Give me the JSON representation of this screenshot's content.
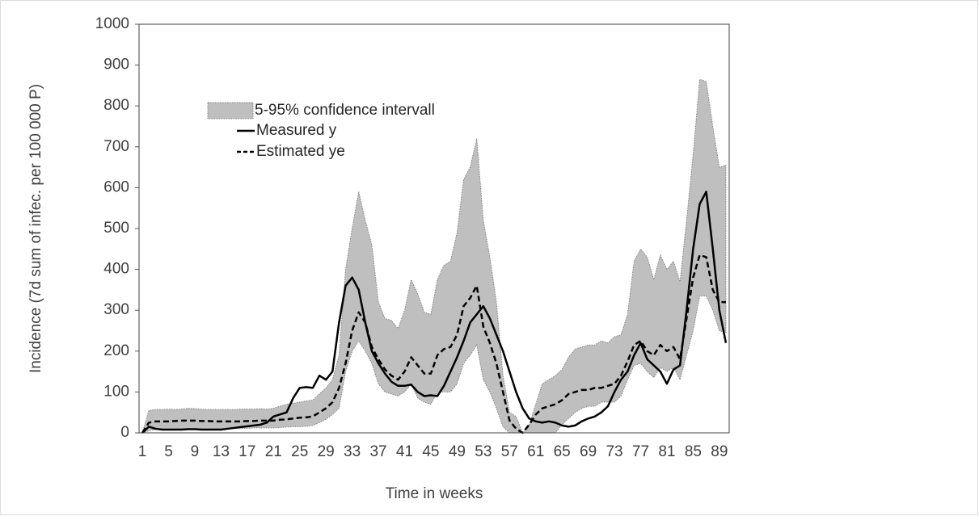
{
  "chart_data": {
    "type": "line",
    "y_label": "Incidence (7d sum of infec. per 100 000 P)",
    "x_label": "Time in weeks",
    "categories": [
      "1",
      null,
      null,
      null,
      "5",
      null,
      null,
      null,
      "9",
      null,
      null,
      null,
      "13",
      null,
      null,
      null,
      "17",
      null,
      null,
      null,
      "21",
      null,
      null,
      null,
      "25",
      null,
      null,
      null,
      "29",
      null,
      null,
      null,
      "33",
      null,
      null,
      null,
      "37",
      null,
      null,
      null,
      "41",
      null,
      null,
      null,
      "45",
      null,
      null,
      null,
      "49",
      null,
      null,
      null,
      "53",
      null,
      null,
      null,
      "57",
      null,
      null,
      null,
      "61",
      null,
      null,
      null,
      "65",
      null,
      null,
      null,
      "69",
      null,
      null,
      null,
      "73",
      null,
      null,
      null,
      "77",
      null,
      null,
      null,
      "81",
      null,
      null,
      null,
      "85",
      null,
      null,
      null,
      "89",
      null
    ],
    "ylim": [
      0,
      1000
    ],
    "yticks": [
      0,
      100,
      200,
      300,
      400,
      500,
      600,
      700,
      800,
      900,
      1000
    ],
    "band": {
      "name": "5-95% confidence intervall",
      "color": "#bfbfbf",
      "upper": [
        0,
        55,
        57,
        57,
        58,
        57,
        58,
        60,
        59,
        58,
        57,
        57,
        57,
        57,
        57,
        58,
        58,
        58,
        59,
        58,
        60,
        65,
        70,
        72,
        75,
        78,
        80,
        95,
        110,
        130,
        190,
        400,
        500,
        590,
        520,
        460,
        320,
        280,
        275,
        255,
        300,
        375,
        340,
        295,
        290,
        375,
        410,
        420,
        490,
        620,
        650,
        720,
        520,
        430,
        320,
        140,
        50,
        40,
        0,
        20,
        70,
        120,
        130,
        140,
        155,
        185,
        205,
        210,
        215,
        215,
        225,
        220,
        235,
        240,
        290,
        420,
        450,
        430,
        375,
        435,
        400,
        420,
        370,
        520,
        680,
        865,
        860,
        750,
        650,
        655
      ],
      "lower": [
        0,
        5,
        8,
        9,
        9,
        9,
        10,
        10,
        10,
        10,
        10,
        10,
        10,
        10,
        11,
        11,
        11,
        12,
        12,
        12,
        12,
        13,
        14,
        15,
        15,
        16,
        18,
        25,
        33,
        45,
        60,
        150,
        200,
        225,
        200,
        170,
        120,
        100,
        95,
        90,
        100,
        120,
        85,
        75,
        70,
        100,
        100,
        100,
        120,
        170,
        190,
        215,
        130,
        100,
        60,
        15,
        0,
        0,
        0,
        0,
        0,
        0,
        0,
        0,
        20,
        35,
        50,
        60,
        65,
        65,
        75,
        75,
        75,
        90,
        130,
        165,
        170,
        150,
        135,
        160,
        150,
        160,
        130,
        190,
        250,
        335,
        335,
        300,
        250,
        245
      ]
    },
    "series": [
      {
        "name": "Measured y",
        "color": "#000000",
        "dashed": false,
        "values": [
          0,
          15,
          10,
          8,
          8,
          8,
          8,
          9,
          9,
          8,
          8,
          8,
          8,
          10,
          12,
          14,
          16,
          18,
          20,
          25,
          40,
          45,
          50,
          85,
          110,
          112,
          110,
          140,
          130,
          150,
          270,
          360,
          380,
          350,
          270,
          200,
          170,
          145,
          125,
          115,
          115,
          118,
          100,
          90,
          92,
          90,
          115,
          150,
          185,
          225,
          270,
          290,
          310,
          280,
          240,
          200,
          150,
          100,
          60,
          35,
          28,
          25,
          28,
          25,
          18,
          15,
          18,
          28,
          35,
          40,
          50,
          65,
          100,
          130,
          150,
          190,
          220,
          180,
          165,
          150,
          120,
          155,
          165,
          300,
          450,
          560,
          590,
          450,
          300,
          220
        ]
      },
      {
        "name": "Estimated ye",
        "color": "#000000",
        "dashed": true,
        "values": [
          0,
          25,
          28,
          28,
          28,
          29,
          30,
          30,
          30,
          29,
          29,
          28,
          28,
          28,
          28,
          28,
          29,
          29,
          30,
          30,
          30,
          32,
          33,
          35,
          37,
          38,
          40,
          50,
          60,
          75,
          110,
          170,
          250,
          295,
          270,
          210,
          180,
          155,
          140,
          130,
          150,
          185,
          165,
          145,
          145,
          190,
          205,
          210,
          240,
          310,
          330,
          360,
          260,
          220,
          170,
          100,
          30,
          10,
          0,
          20,
          45,
          60,
          65,
          70,
          80,
          95,
          100,
          105,
          105,
          110,
          110,
          115,
          120,
          140,
          175,
          215,
          225,
          200,
          190,
          215,
          200,
          210,
          180,
          280,
          380,
          435,
          430,
          350,
          320,
          320
        ]
      }
    ]
  }
}
